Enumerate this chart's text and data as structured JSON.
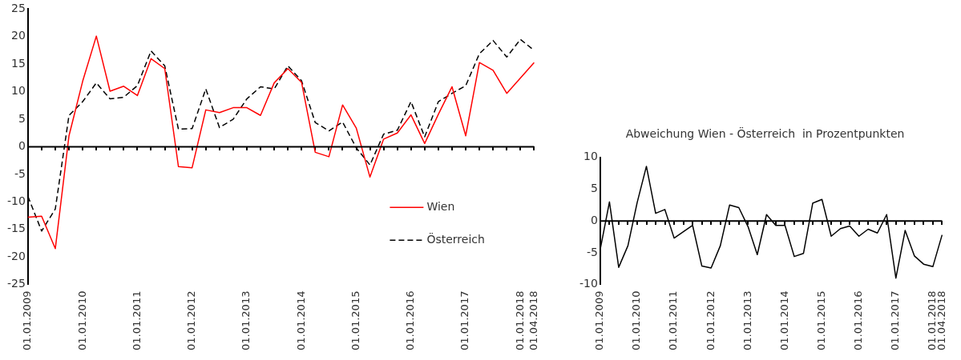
{
  "chart_data": [
    {
      "type": "line",
      "categories": [
        "01.01.2009",
        null,
        null,
        null,
        "01.01.2010",
        null,
        null,
        null,
        "01.01.2011",
        null,
        null,
        null,
        "01.01.2012",
        null,
        null,
        null,
        "01.01.2013",
        null,
        null,
        null,
        "01.01.2014",
        null,
        null,
        null,
        "01.01.2015",
        null,
        null,
        null,
        "01.01.2016",
        null,
        null,
        null,
        "01.01.2017",
        null,
        null,
        null,
        "01.01.2018",
        "01.04.2018"
      ],
      "series": [
        {
          "name": "Wien",
          "color": "#ff0000",
          "line_style": "solid",
          "values": [
            -12.8,
            -12.6,
            -18.5,
            2.0,
            11.9,
            20.1,
            10.1,
            11.0,
            9.3,
            16.0,
            14.2,
            -3.6,
            -3.8,
            6.7,
            6.2,
            7.1,
            7.1,
            5.7,
            11.6,
            14.2,
            11.7,
            -1.0,
            -1.8,
            7.6,
            3.4,
            -5.5,
            1.4,
            2.5,
            5.8,
            0.6,
            5.9,
            10.9,
            2.0,
            15.3,
            13.9,
            9.7,
            12.5,
            15.3
          ]
        },
        {
          "name": "Österreich",
          "color": "#000000",
          "line_style": "dashed",
          "values": [
            -9.0,
            -15.3,
            -11.3,
            5.7,
            8.2,
            11.6,
            8.7,
            9.0,
            11.1,
            17.4,
            14.7,
            3.2,
            3.3,
            10.5,
            3.5,
            5.0,
            8.7,
            10.9,
            10.5,
            14.7,
            12.0,
            4.4,
            2.9,
            4.5,
            -0.2,
            -3.3,
            2.3,
            3.0,
            8.2,
            1.8,
            8.2,
            9.7,
            11.1,
            16.9,
            19.3,
            16.3,
            19.5,
            17.5
          ]
        }
      ],
      "ref_lines": [
        {
          "axis": "y",
          "value": 0,
          "color": "#000000"
        }
      ],
      "ylim": [
        -25,
        25
      ],
      "yticks": [
        -25,
        -20,
        -15,
        -10,
        -5,
        0,
        5,
        10,
        15,
        20,
        25
      ],
      "grid": false,
      "legend": "right",
      "marker": "none"
    },
    {
      "type": "line",
      "title": "Abweichung Wien - Österreich  in Prozentpunkten",
      "categories": [
        "01.01.2009",
        null,
        null,
        null,
        "01.01.2010",
        null,
        null,
        null,
        "01.01.2011",
        null,
        null,
        null,
        "01.01.2012",
        null,
        null,
        null,
        "01.01.2013",
        null,
        null,
        null,
        "01.01.2014",
        null,
        null,
        null,
        "01.01.2015",
        null,
        null,
        null,
        "01.01.2016",
        null,
        null,
        null,
        "01.01.2017",
        null,
        null,
        null,
        "01.01.2018",
        "01.04.2018"
      ],
      "series": [
        {
          "color": "#000000",
          "line_style": "solid",
          "values": [
            -4.5,
            3.0,
            -7.3,
            -3.9,
            2.9,
            8.6,
            1.2,
            1.8,
            -2.7,
            -1.7,
            -0.7,
            -7.1,
            -7.4,
            -3.9,
            2.5,
            2.1,
            -0.9,
            -5.3,
            1.0,
            -0.7,
            -0.7,
            -5.6,
            -5.1,
            2.8,
            3.4,
            -2.4,
            -1.2,
            -0.8,
            -2.4,
            -1.3,
            -1.9,
            1.0,
            -9.0,
            -1.5,
            -5.5,
            -6.8,
            -7.2,
            -2.2
          ]
        }
      ],
      "ref_lines": [
        {
          "axis": "y",
          "value": 0,
          "color": "#000000"
        }
      ],
      "ylim": [
        -10,
        10
      ],
      "yticks": [
        -10,
        -5,
        0,
        5,
        10
      ],
      "grid": false,
      "legend": false,
      "marker": "none"
    }
  ]
}
